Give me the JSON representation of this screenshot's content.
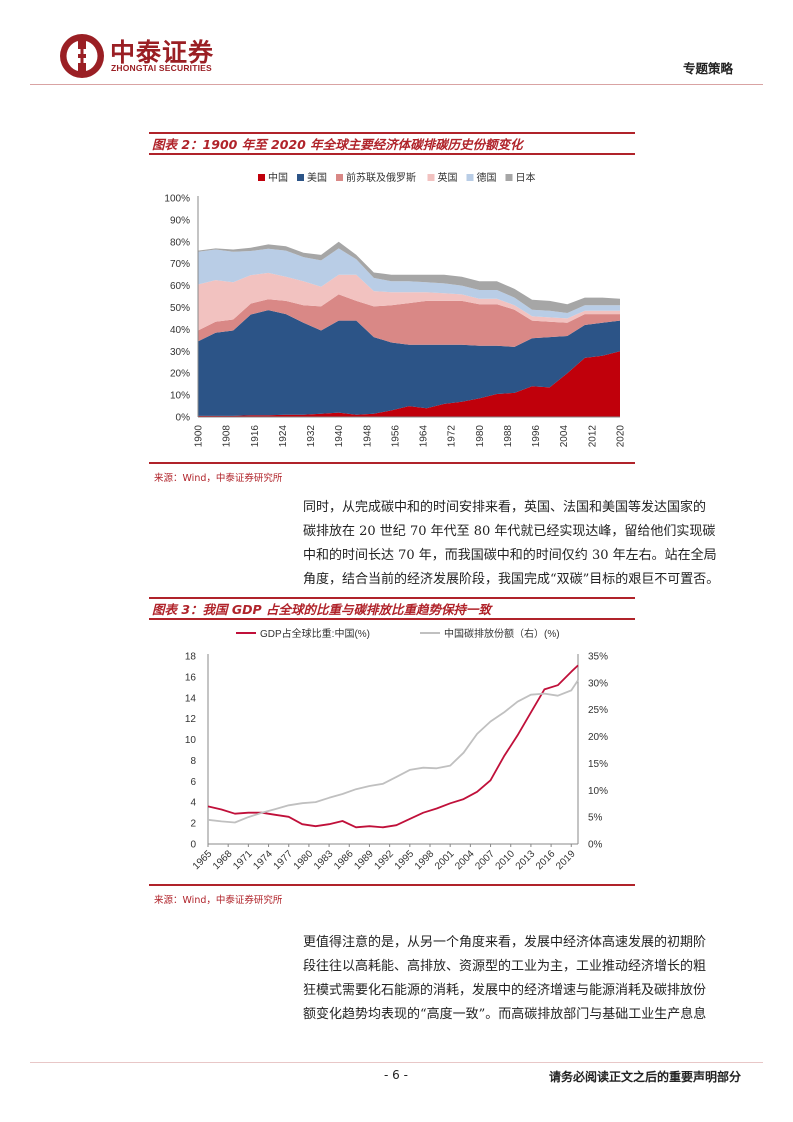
{
  "header": {
    "logo_cn": "中泰证券",
    "logo_en": "ZHONGTAI SECURITIES",
    "report_type": "专题策略",
    "brand_color": "#9a1f24"
  },
  "figure2": {
    "title": "图表 2：1900 年至 2020 年全球主要经济体碳排碳历史份额变化",
    "source": "来源：Wind，中泰证券研究所"
  },
  "figure3": {
    "title": "图表 3：我国 GDP 占全球的比重与碳排放比重趋势保持一致",
    "source": "来源：Wind，中泰证券研究所"
  },
  "paragraph1": {
    "lines": [
      "同时，从完成碳中和的时间安排来看，英国、法国和美国等发达国家的",
      "碳排放在 20 世纪 70 年代至 80 年代就已经实现达峰，留给他们实现碳",
      "中和的时间长达 70 年，而我国碳中和的时间仅约 30 年左右。站在全局",
      "角度，结合当前的经济发展阶段，我国完成“双碳”目标的艰巨不可置否。"
    ]
  },
  "paragraph2": {
    "lines": [
      "更值得注意的是，从另一个角度来看，发展中经济体高速发展的初期阶",
      "段往往以高耗能、高排放、资源型的工业为主，工业推动经济增长的粗",
      "狂模式需要化石能源的消耗，发展中的经济增速与能源消耗及碳排放份",
      "额变化趋势均表现的“高度一致”。而高碳排放部门与基础工业生产息息"
    ]
  },
  "footer": {
    "page_number": "- 6 -",
    "note": "请务必阅读正文之后的重要声明部分"
  },
  "chart_data": [
    {
      "type": "area",
      "stacked": true,
      "title": "",
      "legend_position": "top",
      "x": [
        1900,
        1905,
        1910,
        1915,
        1920,
        1925,
        1930,
        1935,
        1940,
        1945,
        1950,
        1955,
        1960,
        1965,
        1970,
        1975,
        1980,
        1985,
        1990,
        1995,
        2000,
        2005,
        2010,
        2015,
        2020
      ],
      "x_ticks": [
        "1900",
        "1908",
        "1916",
        "1924",
        "1932",
        "1940",
        "1948",
        "1956",
        "1964",
        "1972",
        "1980",
        "1988",
        "1996",
        "2004",
        "2012",
        "2020"
      ],
      "y_ticks": [
        "0%",
        "10%",
        "20%",
        "30%",
        "40%",
        "50%",
        "60%",
        "70%",
        "80%",
        "90%",
        "100%"
      ],
      "ylim": [
        0,
        100
      ],
      "series": [
        {
          "name": "中国",
          "color": "#c0000b",
          "values": [
            0.5,
            0.5,
            0.5,
            0.8,
            0.8,
            1,
            1,
            1.5,
            2,
            1,
            1.5,
            3,
            5,
            4,
            6,
            7,
            8.5,
            10.5,
            11,
            14,
            13.5,
            20,
            27,
            28,
            30
          ]
        },
        {
          "name": "美国",
          "color": "#2c5487",
          "values": [
            34,
            38,
            39,
            46,
            48,
            46,
            42,
            38,
            42,
            43,
            35,
            31,
            28,
            29,
            27,
            26,
            24,
            22,
            21,
            22,
            23,
            17,
            15,
            15,
            14
          ]
        },
        {
          "name": "前苏联及俄罗斯",
          "color": "#d98886",
          "values": [
            5,
            5,
            5,
            5,
            5,
            6,
            8,
            11,
            12,
            9,
            14,
            17,
            19,
            20,
            20,
            20,
            19,
            19,
            17,
            8,
            7,
            6,
            5,
            4,
            3
          ]
        },
        {
          "name": "英国",
          "color": "#f2c2c0",
          "values": [
            21,
            19,
            17,
            13,
            12,
            11,
            11,
            9,
            9,
            12,
            7,
            6,
            5,
            4,
            3.5,
            3,
            2.5,
            2.5,
            2,
            2,
            2,
            2,
            1.5,
            1.5,
            1.5
          ]
        },
        {
          "name": "德国",
          "color": "#b9cde6",
          "values": [
            15,
            14,
            14,
            11,
            11,
            12,
            11,
            12,
            12,
            7,
            6,
            5,
            5,
            4.5,
            4.5,
            4,
            4,
            4,
            3.5,
            3,
            3,
            2.5,
            2.5,
            2.5,
            2.5
          ]
        },
        {
          "name": "日本",
          "color": "#a6a6a6",
          "values": [
            0.5,
            0.5,
            1,
            1.5,
            2,
            2,
            2,
            2.5,
            3,
            2,
            2.5,
            3,
            3,
            3.5,
            4,
            4,
            4,
            4,
            4,
            4.5,
            4.5,
            4,
            3.5,
            3.5,
            3
          ]
        }
      ]
    },
    {
      "type": "line",
      "title": "",
      "legend_position": "top",
      "x_ticks": [
        "1965",
        "1968",
        "1971",
        "1974",
        "1977",
        "1980",
        "1983",
        "1986",
        "1989",
        "1992",
        "1995",
        "1998",
        "2001",
        "2004",
        "2007",
        "2010",
        "2013",
        "2016",
        "2019"
      ],
      "y_left_ticks": [
        "0",
        "2",
        "4",
        "6",
        "8",
        "10",
        "12",
        "14",
        "16",
        "18"
      ],
      "y_right_ticks": [
        "0%",
        "5%",
        "10%",
        "15%",
        "20%",
        "25%",
        "30%",
        "35%"
      ],
      "ylim_left": [
        0,
        18
      ],
      "ylim_right": [
        0,
        35
      ],
      "xlim": [
        1965,
        2020
      ],
      "series": [
        {
          "name": "GDP占全球比重:中国(%)",
          "axis": "left",
          "color": "#c0103a",
          "x": [
            1965,
            1967,
            1969,
            1971,
            1973,
            1975,
            1977,
            1979,
            1981,
            1983,
            1985,
            1987,
            1989,
            1991,
            1993,
            1995,
            1997,
            1999,
            2001,
            2003,
            2005,
            2007,
            2009,
            2011,
            2013,
            2015,
            2017,
            2019,
            2020
          ],
          "values": [
            3.6,
            3.3,
            2.9,
            3.0,
            3.0,
            2.8,
            2.6,
            1.9,
            1.7,
            1.9,
            2.2,
            1.6,
            1.7,
            1.6,
            1.8,
            2.4,
            3.0,
            3.4,
            3.9,
            4.3,
            5.0,
            6.1,
            8.4,
            10.4,
            12.6,
            14.8,
            15.2,
            16.5,
            17.1
          ]
        },
        {
          "name": "中国碳排放份额（右）(%)",
          "axis": "right",
          "color": "#c0c0c0",
          "x": [
            1965,
            1967,
            1969,
            1971,
            1973,
            1975,
            1977,
            1979,
            1981,
            1983,
            1985,
            1987,
            1989,
            1991,
            1993,
            1995,
            1997,
            1999,
            2001,
            2003,
            2005,
            2007,
            2009,
            2011,
            2013,
            2015,
            2017,
            2019,
            2020
          ],
          "values": [
            4.5,
            4.2,
            4.0,
            5.0,
            5.8,
            6.5,
            7.2,
            7.6,
            7.8,
            8.6,
            9.3,
            10.2,
            10.8,
            11.2,
            12.5,
            13.8,
            14.2,
            14.1,
            14.6,
            17.0,
            20.5,
            22.8,
            24.5,
            26.5,
            27.8,
            28.0,
            27.6,
            28.6,
            30.5
          ]
        }
      ]
    }
  ]
}
